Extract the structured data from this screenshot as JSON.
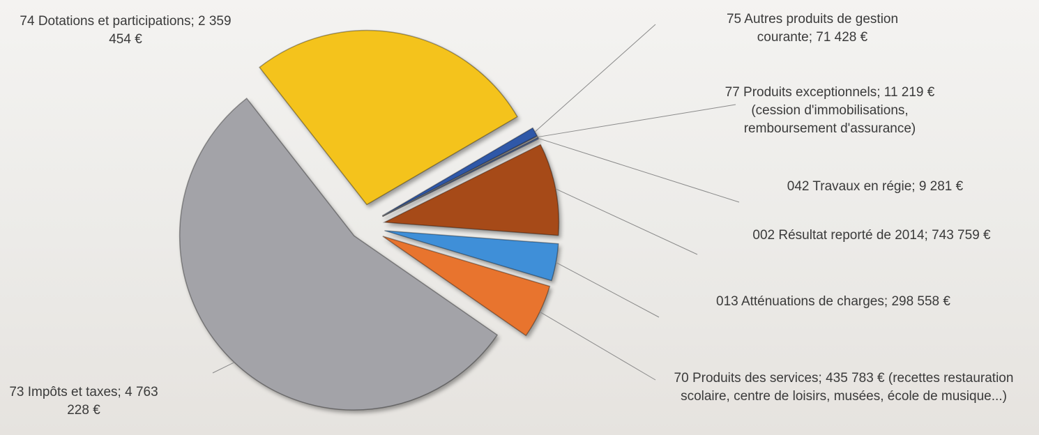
{
  "chart_data": {
    "type": "pie",
    "categories": [
      "74 Dotations et participations;",
      "75 Autres produits de gestion courante;",
      "77 Produits exceptionnels;",
      "042 Travaux en régie;",
      "002 Résultat reporté de 2014;",
      "013 Atténuations de charges;",
      "70 Produits des services;",
      "73 Impôts et taxes;"
    ],
    "values": [
      2359454,
      71428,
      11219,
      9281,
      743759,
      298558,
      435783,
      4763228
    ],
    "value_labels": [
      "2 359 454 €",
      "71 428 €",
      "11 219 €",
      "9 281 €",
      "743 759 €",
      "298 558 €",
      "435 783 €",
      "4 763 228 €"
    ],
    "notes": [
      null,
      null,
      "(cession d'immobilisations, remboursement d'assurance)",
      null,
      null,
      null,
      "(recettes restauration scolaire, centre de loisirs, musées, école de musique...)",
      null
    ],
    "colors": [
      "#f4c31c",
      "#2f58a8",
      "#b9b9bd",
      "#5f7fc0",
      "#a64a18",
      "#3f8fd8",
      "#e8742e",
      "#a3a3a8"
    ]
  }
}
